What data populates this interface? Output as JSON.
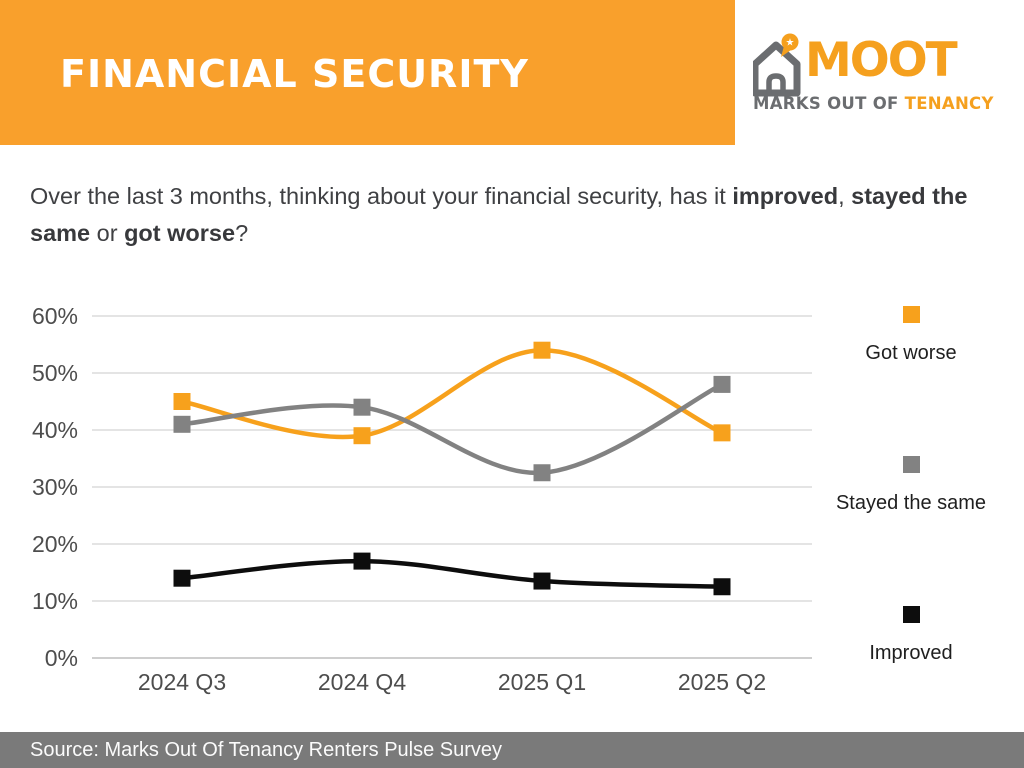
{
  "header": {
    "title": "FINANCIAL SECURITY",
    "banner_color": "#F9A02C"
  },
  "logo": {
    "brand": "MOOT",
    "tagline_left": "MARKS OUT OF",
    "tagline_right": "TENANCY",
    "orange": "#F5A01E",
    "gray": "#6B6D70",
    "star": "★"
  },
  "question": {
    "segments": [
      {
        "text": "Over the last 3 months, thinking about your financial security, has it ",
        "bold": false
      },
      {
        "text": "improved",
        "bold": true
      },
      {
        "text": ", ",
        "bold": false
      },
      {
        "text": "stayed the same",
        "bold": true
      },
      {
        "text": " or ",
        "bold": false
      },
      {
        "text": "got worse",
        "bold": true
      },
      {
        "text": "?",
        "bold": false
      }
    ]
  },
  "chart_data": {
    "type": "line",
    "title": "",
    "categories": [
      "2024 Q3",
      "2024 Q4",
      "2025 Q1",
      "2025 Q2"
    ],
    "series": [
      {
        "name": "Got worse",
        "color": "#F7A11C",
        "values": [
          45,
          39,
          54,
          39.5
        ]
      },
      {
        "name": "Stayed the same",
        "color": "#828282",
        "values": [
          41,
          44,
          32.5,
          48
        ]
      },
      {
        "name": "Improved",
        "color": "#0D0D0D",
        "values": [
          14,
          17,
          13.5,
          12.5
        ]
      }
    ],
    "ylim": [
      0,
      60
    ],
    "ytick_step": 10,
    "ytick_labels": [
      "0%",
      "10%",
      "20%",
      "30%",
      "40%",
      "50%",
      "60%"
    ],
    "grid": true,
    "grid_color": "#DCDCDC",
    "baseline_color": "#BDBDBD",
    "axis_label_color": "#4D4D4D",
    "legend_position": "right",
    "marker": "square",
    "marker_size": 17,
    "line_width": 4.5,
    "smooth": true
  },
  "footer": {
    "text": "Source: Marks Out Of Tenancy Renters Pulse Survey",
    "bar_color": "#7A7A7A"
  }
}
